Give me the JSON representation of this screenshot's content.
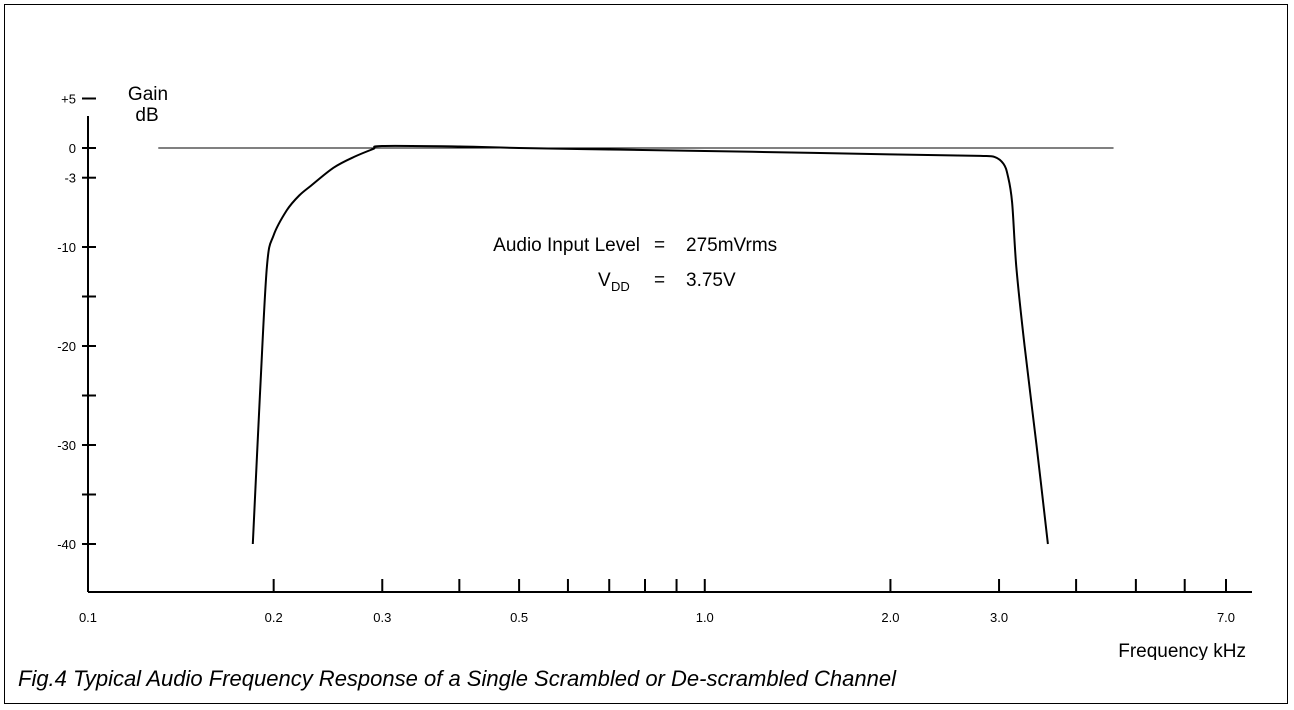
{
  "chart_data": {
    "type": "line",
    "title": "",
    "ylabel": [
      "Gain",
      "dB"
    ],
    "xlabel": "Frequency kHz",
    "x_scale": "log",
    "xlim": [
      0.1,
      7.0
    ],
    "ylim": [
      -45,
      5
    ],
    "y_ticks": [
      {
        "value": 5,
        "label": "+5"
      },
      {
        "value": 0,
        "label": "0"
      },
      {
        "value": -3,
        "label": "-3"
      },
      {
        "value": -10,
        "label": "-10"
      },
      {
        "value": -15,
        "label": ""
      },
      {
        "value": -20,
        "label": "-20"
      },
      {
        "value": -25,
        "label": ""
      },
      {
        "value": -30,
        "label": "-30"
      },
      {
        "value": -35,
        "label": ""
      },
      {
        "value": -40,
        "label": "-40"
      }
    ],
    "x_ticks": [
      {
        "value": 0.1,
        "label": "0.1"
      },
      {
        "value": 0.2,
        "label": "0.2"
      },
      {
        "value": 0.3,
        "label": "0.3"
      },
      {
        "value": 0.4,
        "label": ""
      },
      {
        "value": 0.5,
        "label": "0.5"
      },
      {
        "value": 0.6,
        "label": ""
      },
      {
        "value": 0.7,
        "label": ""
      },
      {
        "value": 0.8,
        "label": ""
      },
      {
        "value": 0.9,
        "label": ""
      },
      {
        "value": 1.0,
        "label": "1.0"
      },
      {
        "value": 2.0,
        "label": "2.0"
      },
      {
        "value": 3.0,
        "label": "3.0"
      },
      {
        "value": 4.0,
        "label": ""
      },
      {
        "value": 5.0,
        "label": ""
      },
      {
        "value": 6.0,
        "label": ""
      },
      {
        "value": 7.0,
        "label": "7.0"
      }
    ],
    "reference_line": {
      "y": 0,
      "x_range": [
        0.13,
        4.6
      ]
    },
    "series": [
      {
        "x": [
          0.185,
          0.19,
          0.195,
          0.2,
          0.21,
          0.22,
          0.23,
          0.25,
          0.27,
          0.29,
          0.3,
          0.4,
          0.5,
          0.7,
          1.0,
          1.5,
          2.0,
          2.5,
          2.8,
          2.95,
          3.05,
          3.1,
          3.15,
          3.2,
          3.3,
          3.45,
          3.6
        ],
        "y": [
          -40,
          -25,
          -12,
          -8.8,
          -6.3,
          -4.8,
          -3.8,
          -2,
          -0.9,
          -0.1,
          0.2,
          0.15,
          0,
          -0.15,
          -0.3,
          -0.5,
          -0.65,
          -0.75,
          -0.8,
          -0.9,
          -1.6,
          -2.8,
          -5.5,
          -12,
          -20,
          -30,
          -40
        ]
      }
    ],
    "annotations": [
      {
        "label": "Audio Input Level",
        "eq": "=",
        "value": "275mVrms"
      },
      {
        "label": "V",
        "subscript": "DD",
        "eq": "=",
        "value": "3.75V"
      }
    ]
  },
  "caption": "Fig.4 Typical Audio Frequency Response of a Single Scrambled or De-scrambled Channel"
}
